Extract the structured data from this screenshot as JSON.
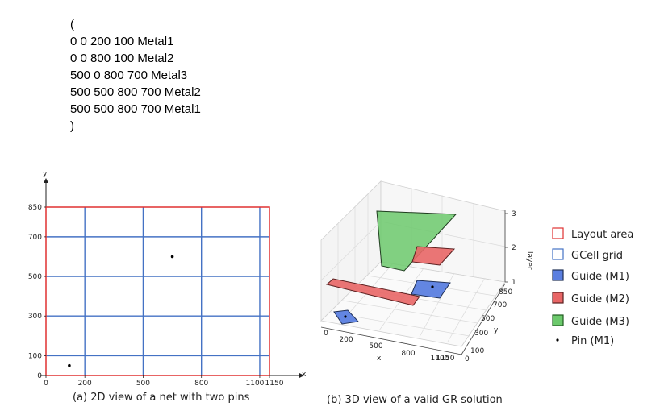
{
  "code_block": {
    "lines": [
      "(",
      "0 0 200 100 Metal1",
      "0 0 800 100 Metal2",
      "500 0 800 700 Metal3",
      "500 500 800 700 Metal2",
      "500 500 800 700 Metal1",
      ")"
    ]
  },
  "view2d": {
    "caption": "(a) 2D view of a net with two pins",
    "x_axis_label": "x",
    "y_axis_label": "y",
    "x_ticks": [
      "0",
      "200",
      "500",
      "800",
      "1100",
      "1150"
    ],
    "y_ticks": [
      "0",
      "100",
      "300",
      "500",
      "700",
      "850"
    ],
    "layout_area_color": "#e03131",
    "gcell_grid_color": "#4472c4",
    "pins": [
      {
        "x": 120,
        "y": 50
      },
      {
        "x": 650,
        "y": 600
      }
    ]
  },
  "view3d": {
    "caption": "(b) 3D view of a valid GR solution",
    "x_axis_label": "x",
    "y_axis_label": "y",
    "z_axis_label": "layer",
    "x_ticks": [
      "0",
      "200",
      "500",
      "800",
      "1100",
      "1150"
    ],
    "y_ticks": [
      "0",
      "100",
      "300",
      "500",
      "700",
      "850"
    ],
    "z_ticks": [
      "1",
      "2",
      "3"
    ]
  },
  "legend": {
    "items": [
      {
        "label": "Layout area",
        "type": "box",
        "fill": "#ffffff",
        "stroke": "#e03131"
      },
      {
        "label": "GCell grid",
        "type": "box",
        "fill": "#ffffff",
        "stroke": "#4472c4"
      },
      {
        "label": "Guide (M1)",
        "type": "box",
        "fill": "#5b7fe0",
        "stroke": "#1f2f55"
      },
      {
        "label": "Guide (M2)",
        "type": "box",
        "fill": "#e86666",
        "stroke": "#5a1f1f"
      },
      {
        "label": "Guide (M3)",
        "type": "box",
        "fill": "#6cc96c",
        "stroke": "#1f5a1f"
      },
      {
        "label": "Pin (M1)",
        "type": "dot",
        "fill": "#000000",
        "stroke": "#000000"
      }
    ]
  },
  "chart_data": {
    "type": "other",
    "description_none": "",
    "routing_guides": [
      {
        "xl": 0,
        "yl": 0,
        "xh": 200,
        "yh": 100,
        "layer": "Metal1"
      },
      {
        "xl": 0,
        "yl": 0,
        "xh": 800,
        "yh": 100,
        "layer": "Metal2"
      },
      {
        "xl": 500,
        "yl": 0,
        "xh": 800,
        "yh": 700,
        "layer": "Metal3"
      },
      {
        "xl": 500,
        "yl": 500,
        "xh": 800,
        "yh": 700,
        "layer": "Metal2"
      },
      {
        "xl": 500,
        "yl": 500,
        "xh": 800,
        "yh": 700,
        "layer": "Metal1"
      }
    ],
    "layout_area": {
      "x": [
        0,
        1150
      ],
      "y": [
        0,
        850
      ]
    },
    "gcell_boundaries_x": [
      200,
      500,
      800,
      1100
    ],
    "gcell_boundaries_y": [
      100,
      300,
      500,
      700
    ]
  }
}
